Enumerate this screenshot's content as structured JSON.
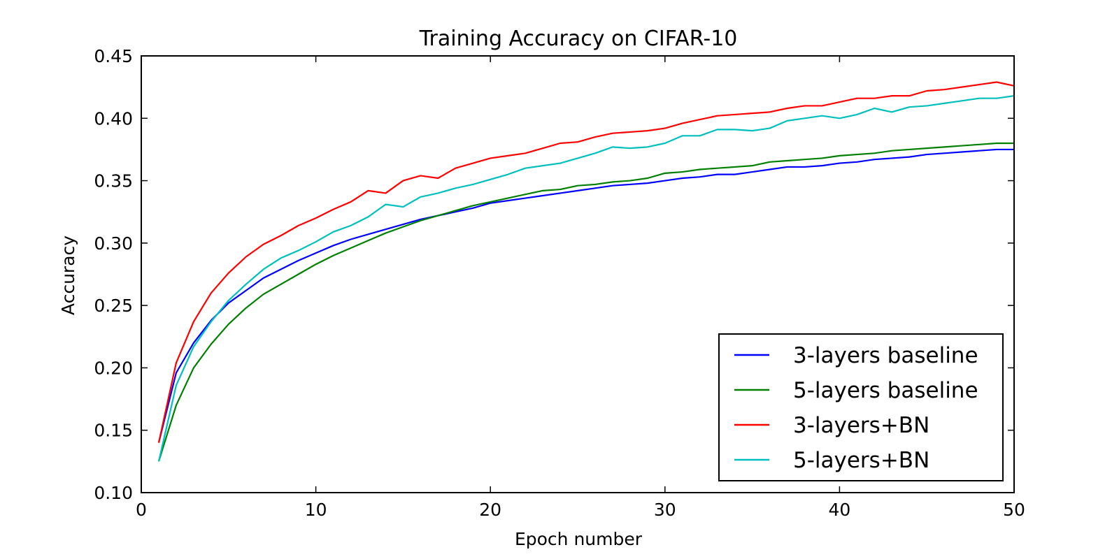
{
  "chart_data": {
    "type": "line",
    "title": "Training Accuracy on CIFAR-10",
    "xlabel": "Epoch number",
    "ylabel": "Accuracy",
    "xlim": [
      0,
      50
    ],
    "ylim": [
      0.1,
      0.45
    ],
    "xticks": [
      "0",
      "10",
      "20",
      "30",
      "40",
      "50"
    ],
    "yticks": [
      "0.10",
      "0.15",
      "0.20",
      "0.25",
      "0.30",
      "0.35",
      "0.40",
      "0.45"
    ],
    "grid": false,
    "legend_position": "lower-right",
    "x": [
      1,
      2,
      3,
      4,
      5,
      6,
      7,
      8,
      9,
      10,
      11,
      12,
      13,
      14,
      15,
      16,
      17,
      18,
      19,
      20,
      21,
      22,
      23,
      24,
      25,
      26,
      27,
      28,
      29,
      30,
      31,
      32,
      33,
      34,
      35,
      36,
      37,
      38,
      39,
      40,
      41,
      42,
      43,
      44,
      45,
      46,
      47,
      48,
      49,
      50
    ],
    "series": [
      {
        "name": "3-layers baseline",
        "color": "#0000ff",
        "values": [
          0.14,
          0.196,
          0.22,
          0.238,
          0.252,
          0.262,
          0.272,
          0.279,
          0.286,
          0.292,
          0.298,
          0.303,
          0.307,
          0.311,
          0.315,
          0.319,
          0.322,
          0.325,
          0.328,
          0.332,
          0.334,
          0.336,
          0.338,
          0.34,
          0.342,
          0.344,
          0.346,
          0.347,
          0.348,
          0.35,
          0.352,
          0.353,
          0.355,
          0.355,
          0.357,
          0.359,
          0.361,
          0.361,
          0.362,
          0.364,
          0.365,
          0.367,
          0.368,
          0.369,
          0.371,
          0.372,
          0.373,
          0.374,
          0.375,
          0.375
        ]
      },
      {
        "name": "5-layers baseline",
        "color": "#008000",
        "values": [
          0.125,
          0.17,
          0.2,
          0.219,
          0.235,
          0.248,
          0.259,
          0.267,
          0.275,
          0.283,
          0.29,
          0.296,
          0.302,
          0.308,
          0.313,
          0.318,
          0.322,
          0.326,
          0.33,
          0.333,
          0.336,
          0.339,
          0.342,
          0.343,
          0.346,
          0.347,
          0.349,
          0.35,
          0.352,
          0.356,
          0.357,
          0.359,
          0.36,
          0.361,
          0.362,
          0.365,
          0.366,
          0.367,
          0.368,
          0.37,
          0.371,
          0.372,
          0.374,
          0.375,
          0.376,
          0.377,
          0.378,
          0.379,
          0.38,
          0.38
        ]
      },
      {
        "name": "3-layers+BN",
        "color": "#ff0000",
        "values": [
          0.14,
          0.204,
          0.237,
          0.26,
          0.276,
          0.289,
          0.299,
          0.306,
          0.314,
          0.32,
          0.327,
          0.333,
          0.342,
          0.34,
          0.35,
          0.354,
          0.352,
          0.36,
          0.364,
          0.368,
          0.37,
          0.372,
          0.376,
          0.38,
          0.381,
          0.385,
          0.388,
          0.389,
          0.39,
          0.392,
          0.396,
          0.399,
          0.402,
          0.403,
          0.404,
          0.405,
          0.408,
          0.41,
          0.41,
          0.413,
          0.416,
          0.416,
          0.418,
          0.418,
          0.422,
          0.423,
          0.425,
          0.427,
          0.429,
          0.426
        ]
      },
      {
        "name": "5-layers+BN",
        "color": "#00bfbf",
        "values": [
          0.125,
          0.186,
          0.217,
          0.237,
          0.254,
          0.267,
          0.279,
          0.288,
          0.294,
          0.301,
          0.309,
          0.314,
          0.321,
          0.331,
          0.329,
          0.337,
          0.34,
          0.344,
          0.347,
          0.351,
          0.355,
          0.36,
          0.362,
          0.364,
          0.368,
          0.372,
          0.377,
          0.376,
          0.377,
          0.38,
          0.386,
          0.386,
          0.391,
          0.391,
          0.39,
          0.392,
          0.398,
          0.4,
          0.402,
          0.4,
          0.403,
          0.408,
          0.405,
          0.409,
          0.41,
          0.412,
          0.414,
          0.416,
          0.416,
          0.418
        ]
      }
    ]
  }
}
